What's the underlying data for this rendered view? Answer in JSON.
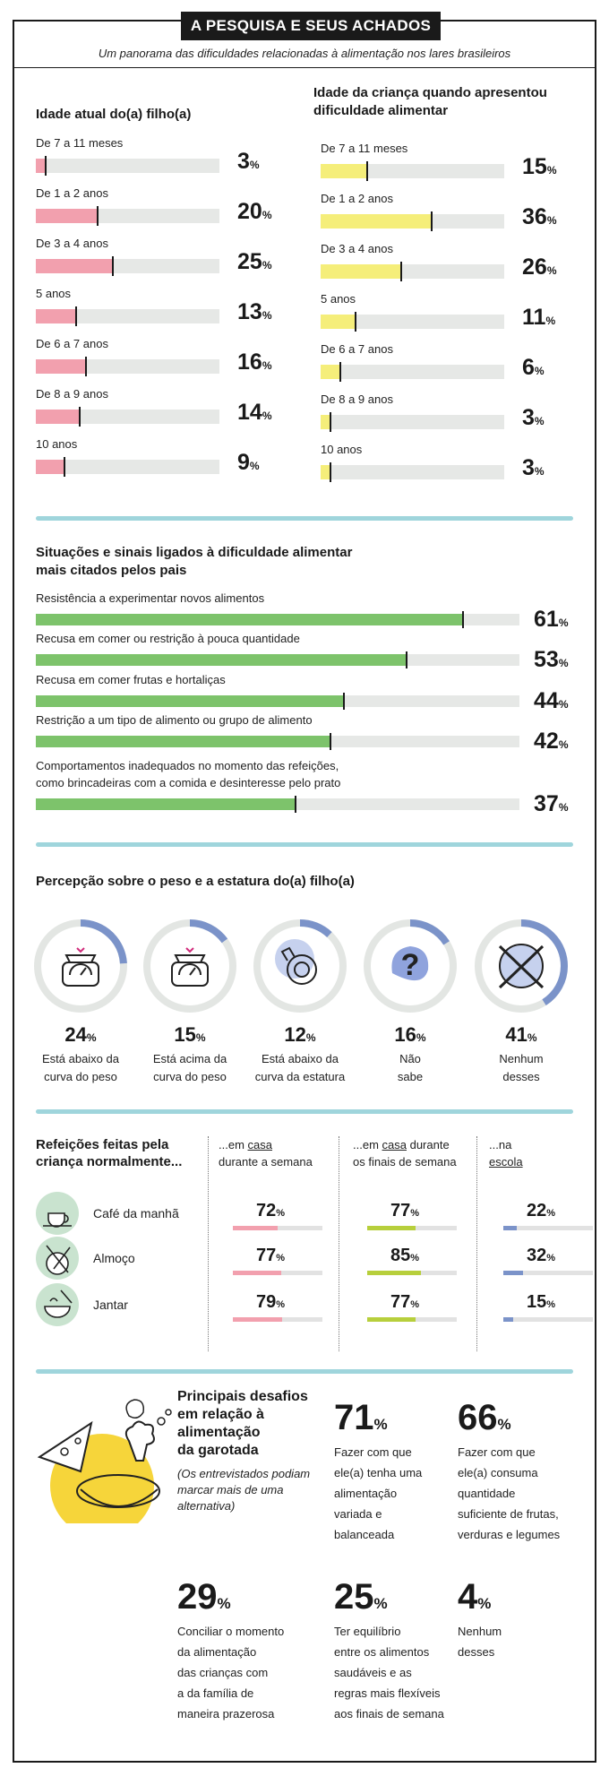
{
  "header": {
    "title": "A PESQUISA E SEUS ACHADOS",
    "subtitle": "Um panorama das dificuldades relacionadas à alimentação nos lares brasileiros"
  },
  "chart_data": [
    {
      "type": "bar",
      "title": "Idade atual do(a) filho(a)",
      "categories": [
        "De 7 a 11 meses",
        "De 1 a 2 anos",
        "De 3 a 4 anos",
        "5 anos",
        "De 6 a 7 anos",
        "De 8 a 9 anos",
        "10 anos"
      ],
      "values": [
        3,
        20,
        25,
        13,
        16,
        14,
        9
      ],
      "unit": "%",
      "color": "#f2a0ae"
    },
    {
      "type": "bar",
      "title": "Idade da criança quando apresentou dificuldade alimentar",
      "categories": [
        "De 7 a 11 meses",
        "De 1 a 2 anos",
        "De 3 a 4 anos",
        "5 anos",
        "De 6 a 7 anos",
        "De 8 a 9 anos",
        "10 anos"
      ],
      "values": [
        15,
        36,
        26,
        11,
        6,
        3,
        3
      ],
      "unit": "%",
      "color": "#f5ee7a"
    },
    {
      "type": "bar",
      "title": "Situações e sinais ligados à dificuldade alimentar mais citados pelos pais",
      "categories": [
        "Resistência a experimentar novos alimentos",
        "Recusa em comer ou restrição à pouca quantidade",
        "Recusa em comer frutas e hortaliças",
        "Restrição a um tipo de alimento ou grupo de alimento",
        "Comportamentos inadequados no momento das refeições, como brincadeiras com a comida e desinteresse pelo prato"
      ],
      "values": [
        61,
        53,
        44,
        42,
        37
      ],
      "unit": "%",
      "color": "#7dc36b"
    }
  ],
  "signs_lines": [
    [
      "Resistência a experimentar novos alimentos"
    ],
    [
      "Recusa em comer ou restrição à pouca quantidade"
    ],
    [
      "Recusa em comer frutas e hortaliças"
    ],
    [
      "Restrição a um tipo de alimento ou grupo de alimento"
    ],
    [
      "Comportamentos inadequados no momento das refeições,",
      "como brincadeiras com a comida e desinteresse pelo prato"
    ]
  ],
  "perception": {
    "title": "Percepção sobre o peso e a estatura do(a) filho(a)",
    "items": [
      {
        "value": 24,
        "num": "24",
        "unit": "%",
        "caption": [
          "Está abaixo da",
          "curva do peso"
        ],
        "icon": "scale-icon"
      },
      {
        "value": 15,
        "num": "15",
        "unit": "%",
        "caption": [
          "Está acima da",
          "curva do peso"
        ],
        "icon": "scale-icon"
      },
      {
        "value": 12,
        "num": "12",
        "unit": "%",
        "caption": [
          "Está abaixo da",
          "curva da estatura"
        ],
        "icon": "measuring-tape-icon"
      },
      {
        "value": 16,
        "num": "16",
        "unit": "%",
        "caption": [
          "Não",
          "sabe"
        ],
        "icon": "question-mark-icon"
      },
      {
        "value": 41,
        "num": "41",
        "unit": "%",
        "caption": [
          "Nenhum",
          "desses"
        ],
        "icon": "crossed-circle-icon"
      }
    ],
    "ring_color": "#7b93c9",
    "ring_track_color": "#e3e6e3"
  },
  "meals": {
    "title": [
      "Refeições feitas pela",
      "criança normalmente..."
    ],
    "columns": [
      {
        "pre": "...em ",
        "u": "casa",
        "post": "",
        "line2": "durante a semana",
        "color": "#f2a0ae"
      },
      {
        "pre": "...em ",
        "u": "casa",
        "post": " durante",
        "line2": "os finais de semana",
        "color": "#b7cf3c"
      },
      {
        "pre": "...na",
        "u": "",
        "post": "",
        "line2": "escola",
        "line2_u": true,
        "color": "#7b93c9"
      }
    ],
    "rows": [
      {
        "name": "Café da manhã",
        "icon": "coffee-cup-icon",
        "values": [
          72,
          77,
          22
        ]
      },
      {
        "name": "Almoço",
        "icon": "plate-fork-icon",
        "values": [
          77,
          85,
          32
        ]
      },
      {
        "name": "Jantar",
        "icon": "bowl-spoon-icon",
        "values": [
          79,
          77,
          15
        ]
      }
    ]
  },
  "challenges": {
    "title": [
      "Principais desafios",
      "em relação à",
      "alimentação",
      "da garotada"
    ],
    "note": [
      "(Os entrevistados podiam",
      "marcar mais de uma",
      "alternativa)"
    ],
    "items": [
      {
        "num": "71",
        "unit": "%",
        "text": [
          "Fazer com que",
          "ele(a) tenha uma",
          "alimentação",
          "variada e",
          "balanceada"
        ]
      },
      {
        "num": "66",
        "unit": "%",
        "text": [
          "Fazer com que",
          "ele(a) consuma",
          "quantidade",
          "suficiente de frutas,",
          "verduras e legumes"
        ]
      },
      {
        "num": "29",
        "unit": "%",
        "text": [
          "Conciliar o momento",
          "da alimentação",
          "das crianças com",
          "a da família de",
          "maneira prazerosa"
        ]
      },
      {
        "num": "25",
        "unit": "%",
        "text": [
          "Ter equilíbrio",
          "entre os alimentos",
          "saudáveis e as",
          "regras mais flexíveis",
          "aos finais de semana"
        ]
      },
      {
        "num": "4",
        "unit": "%",
        "text": [
          "Nenhum",
          "desses"
        ]
      }
    ]
  }
}
